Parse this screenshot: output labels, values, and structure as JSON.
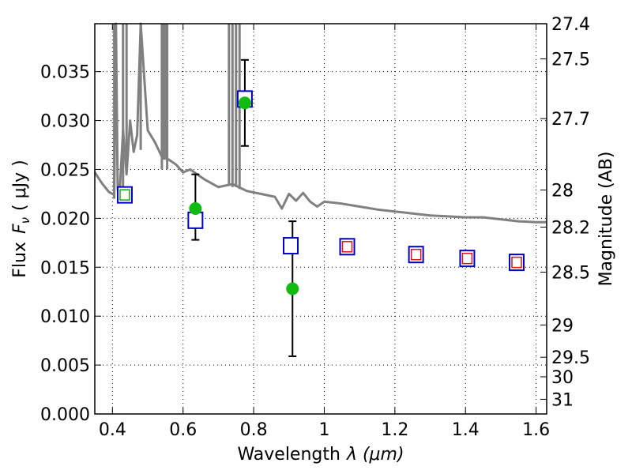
{
  "chart_data": {
    "type": "scatter",
    "xlabel": "Wavelength",
    "xlabel_math": "λ (μm)",
    "ylabel": "Flux",
    "ylabel_math": "F",
    "ylabel_sub": "ν",
    "ylabel_unit": "( μJy )",
    "y2label": "Magnitude (AB)",
    "xlim": [
      0.35,
      1.63
    ],
    "ylim": [
      0.0,
      0.0399
    ],
    "x_ticks": [
      0.4,
      0.6,
      0.8,
      1.0,
      1.2,
      1.4,
      1.6
    ],
    "x_tick_labels": [
      "0.4",
      "0.6",
      "0.8",
      "1",
      "1.2",
      "1.4",
      "1.6"
    ],
    "y_ticks": [
      0.0,
      0.005,
      0.01,
      0.015,
      0.02,
      0.025,
      0.03,
      0.035
    ],
    "y_tick_labels": [
      "0.000",
      "0.005",
      "0.010",
      "0.015",
      "0.020",
      "0.025",
      "0.030",
      "0.035"
    ],
    "y2_ticks": [
      {
        "label": "27.4",
        "flux": 0.0399
      },
      {
        "label": "27.5",
        "flux": 0.0363
      },
      {
        "label": "27.7",
        "flux": 0.0302
      },
      {
        "label": "28",
        "flux": 0.0229
      },
      {
        "label": "28.2",
        "flux": 0.0191
      },
      {
        "label": "28.5",
        "flux": 0.0145
      },
      {
        "label": "29",
        "flux": 0.0091
      },
      {
        "label": "29.5",
        "flux": 0.0058
      },
      {
        "label": "30",
        "flux": 0.0038
      },
      {
        "label": "31",
        "flux": 0.0015
      }
    ],
    "grid": true,
    "colors": {
      "model_sed": "#808080",
      "model_box": "#0000cc",
      "observed": "#11bb11",
      "inner_green": "#11aa11",
      "inner_red": "#dd1111",
      "errorbar": "#000000"
    },
    "model_sed": {
      "x": [
        0.35,
        0.37,
        0.39,
        0.405,
        0.41,
        0.415,
        0.42,
        0.43,
        0.44,
        0.45,
        0.46,
        0.47,
        0.48,
        0.5,
        0.52,
        0.54,
        0.56,
        0.58,
        0.6,
        0.62,
        0.64,
        0.66,
        0.7,
        0.74,
        0.78,
        0.82,
        0.86,
        0.88,
        0.9,
        0.92,
        0.94,
        0.96,
        0.98,
        1.0,
        1.05,
        1.1,
        1.15,
        1.2,
        1.25,
        1.3,
        1.35,
        1.4,
        1.45,
        1.5,
        1.55,
        1.6,
        1.63
      ],
      "y": [
        0.0247,
        0.0236,
        0.0227,
        0.0224,
        0.04,
        0.0229,
        0.0225,
        0.029,
        0.0245,
        0.03,
        0.0268,
        0.0285,
        0.04,
        0.029,
        0.0278,
        0.0263,
        0.026,
        0.0255,
        0.0247,
        0.025,
        0.0245,
        0.024,
        0.0232,
        0.0235,
        0.0228,
        0.0225,
        0.0222,
        0.021,
        0.0225,
        0.0218,
        0.0226,
        0.0217,
        0.0212,
        0.0217,
        0.0215,
        0.0212,
        0.0209,
        0.0207,
        0.0205,
        0.0203,
        0.0202,
        0.0201,
        0.0201,
        0.0199,
        0.0197,
        0.0196,
        0.0196
      ]
    },
    "model_sed_spikes": [
      {
        "x": 0.405,
        "y_low": 0.022,
        "y_high": 0.04
      },
      {
        "x": 0.43,
        "y_low": 0.023,
        "y_high": 0.04
      },
      {
        "x": 0.44,
        "y_low": 0.025,
        "y_high": 0.04
      },
      {
        "x": 0.48,
        "y_low": 0.027,
        "y_high": 0.04
      },
      {
        "x": 0.54,
        "y_low": 0.025,
        "y_high": 0.04
      },
      {
        "x": 0.545,
        "y_low": 0.026,
        "y_high": 0.04
      },
      {
        "x": 0.55,
        "y_low": 0.026,
        "y_high": 0.04
      },
      {
        "x": 0.555,
        "y_low": 0.025,
        "y_high": 0.04
      },
      {
        "x": 0.73,
        "y_low": 0.0235,
        "y_high": 0.04
      },
      {
        "x": 0.74,
        "y_low": 0.0232,
        "y_high": 0.04
      },
      {
        "x": 0.75,
        "y_low": 0.0232,
        "y_high": 0.04
      },
      {
        "x": 0.76,
        "y_low": 0.023,
        "y_high": 0.04
      }
    ],
    "model_photometry": {
      "x": [
        0.435,
        0.635,
        0.775,
        0.905,
        1.065,
        1.26,
        1.405,
        1.545
      ],
      "y": [
        0.0224,
        0.0198,
        0.0322,
        0.0172,
        0.0171,
        0.0163,
        0.0159,
        0.0155
      ],
      "inner": [
        "green",
        "none",
        "none",
        "none",
        "red",
        "red",
        "red",
        "red"
      ]
    },
    "observed": {
      "x": [
        0.635,
        0.775,
        0.91
      ],
      "y": [
        0.021,
        0.0318,
        0.0128
      ],
      "err_low": [
        0.0178,
        0.0274,
        0.0059
      ],
      "err_high": [
        0.0245,
        0.0362,
        0.0197
      ]
    }
  }
}
